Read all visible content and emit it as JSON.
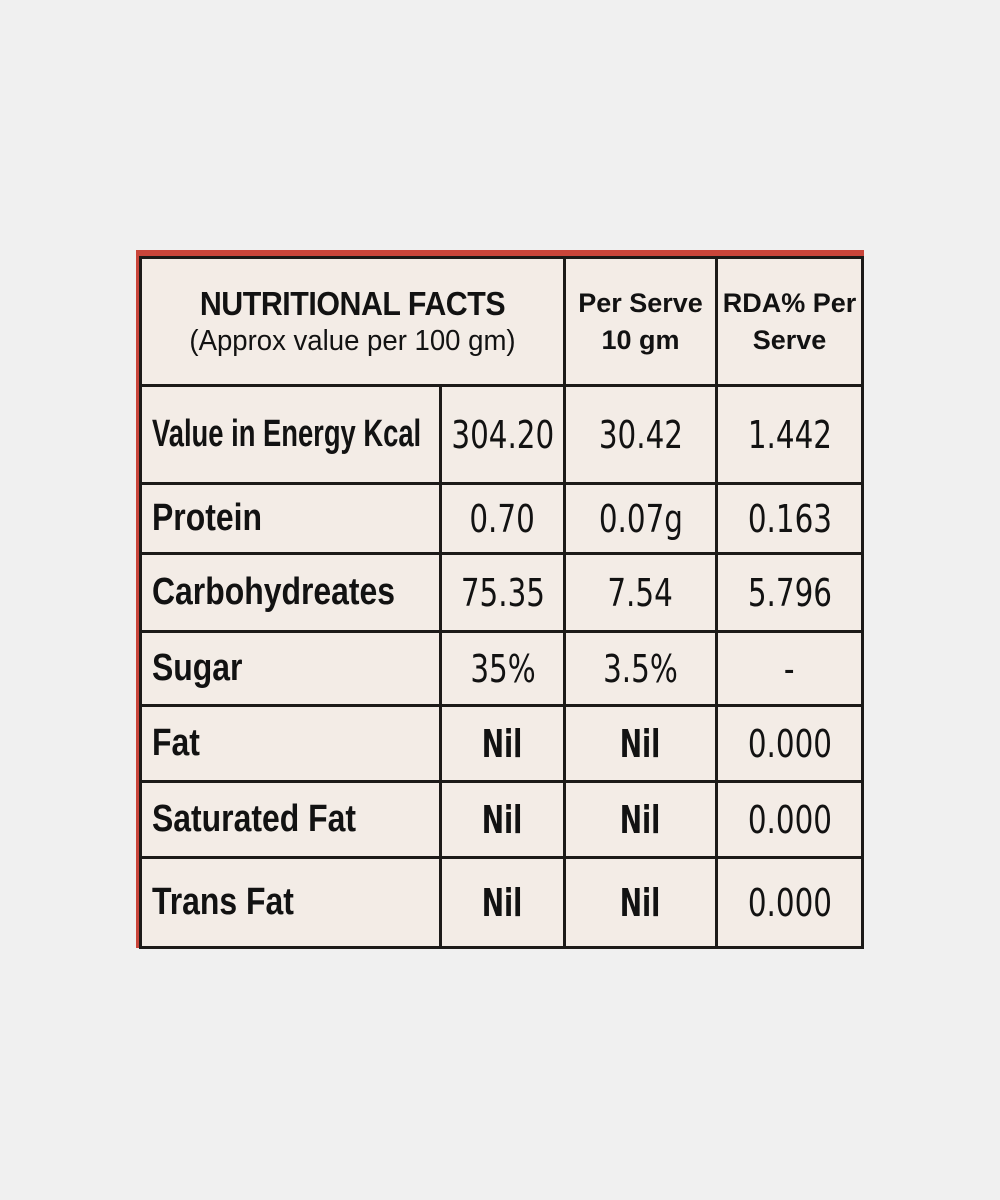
{
  "header": {
    "title": "NUTRITIONAL FACTS",
    "subtitle": "(Approx value per 100 gm)",
    "col_per_serve_1": "Per Serve",
    "col_per_serve_2": "10 gm",
    "col_rda_1": "RDA% Per",
    "col_rda_2": "Serve"
  },
  "rows": [
    {
      "label": "Value in Energy Kcal",
      "per100": "304.20",
      "per_serve": "30.42",
      "rda": "1.442"
    },
    {
      "label": "Protein",
      "per100": "0.70",
      "per_serve": "0.07g",
      "rda": "0.163"
    },
    {
      "label": "Carbohydreates",
      "per100": "75.35",
      "per_serve": "7.54",
      "rda": "5.796"
    },
    {
      "label": "Sugar",
      "per100": "35%",
      "per_serve": "3.5%",
      "rda": "-"
    },
    {
      "label": "Fat",
      "per100": "Nil",
      "per_serve": "Nil",
      "rda": "0.000"
    },
    {
      "label": "Saturated Fat",
      "per100": "Nil",
      "per_serve": "Nil",
      "rda": "0.000"
    },
    {
      "label": "Trans Fat",
      "per100": "Nil",
      "per_serve": "Nil",
      "rda": "0.000"
    }
  ],
  "colors": {
    "page_background": "#f0f0f0",
    "label_red": "#c9453a",
    "table_background": "#f3ece6",
    "ink": "#121212"
  }
}
